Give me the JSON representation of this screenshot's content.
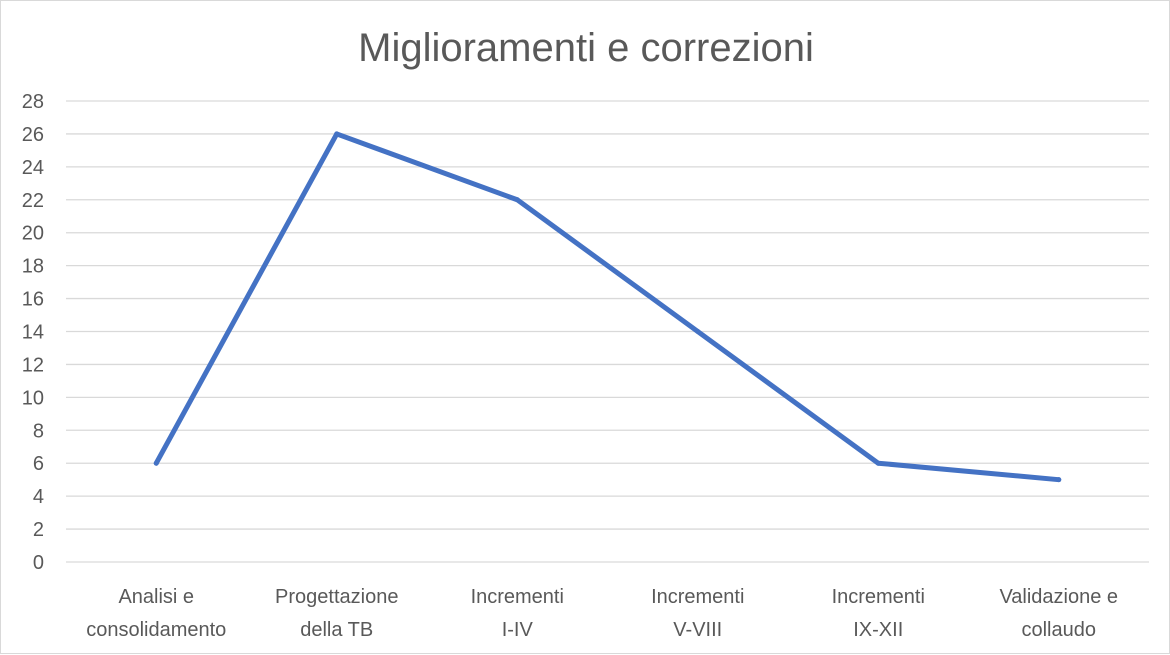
{
  "chart_data": {
    "type": "line",
    "title": "Miglioramenti e correzioni",
    "xlabel": "",
    "ylabel": "",
    "categories": [
      [
        "Analisi e",
        "consolidamento"
      ],
      [
        "Progettazione",
        "della TB"
      ],
      [
        "Incrementi",
        "I-IV"
      ],
      [
        "Incrementi",
        "V-VIII"
      ],
      [
        "Incrementi",
        "IX-XII"
      ],
      [
        "Validazione e",
        "collaudo"
      ]
    ],
    "series": [
      {
        "values": [
          6,
          26,
          22,
          14,
          6,
          5
        ],
        "color": "#4472c4"
      }
    ],
    "ylim": [
      0,
      28
    ],
    "ytick_step": 2,
    "grid": true,
    "legend": "none"
  }
}
